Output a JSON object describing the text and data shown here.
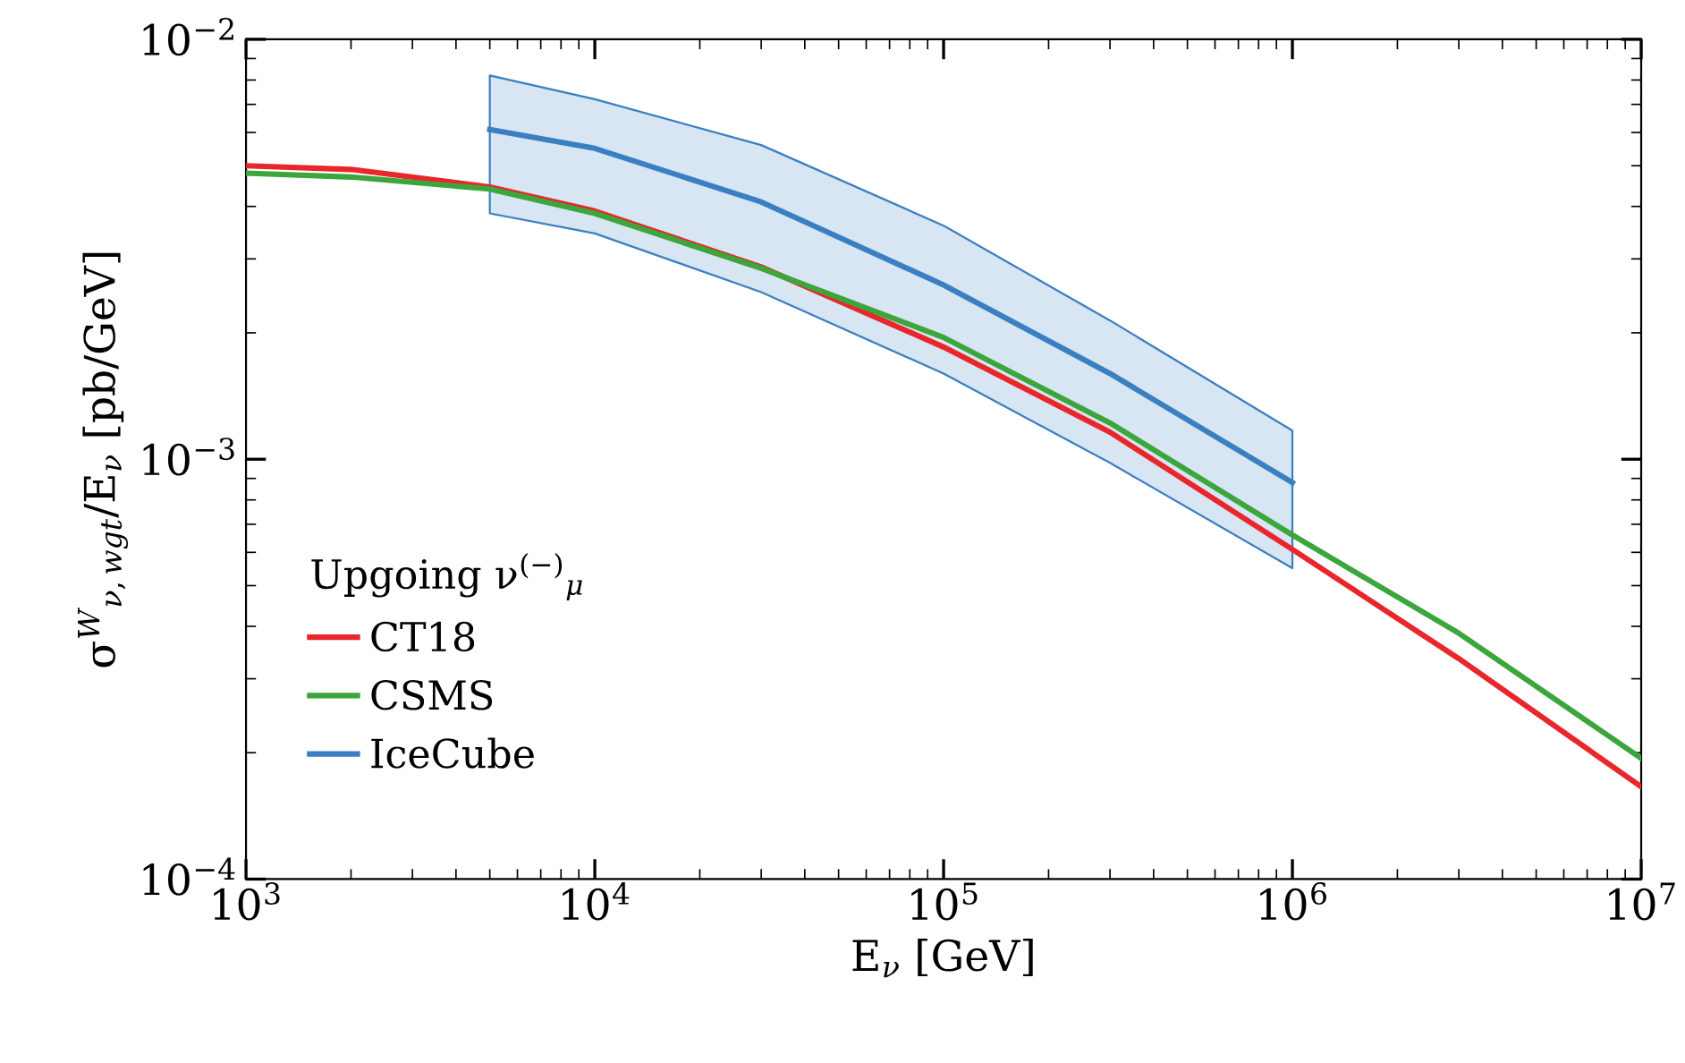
{
  "chart_data": {
    "type": "line",
    "xlabel": "E$_{ν}$ [GeV]",
    "ylabel": "σ$^{W}$$_{ν,wgt}$/E$_{ν}$ [pb/GeV]",
    "legend_title": "Upgoing ν$^{(−)}$$_{μ}$",
    "log": "xy",
    "grid": false,
    "legend": "lower left",
    "line_style": "solid",
    "marker": "none",
    "xlim": [
      1000,
      10000000
    ],
    "ylim": [
      0.0001,
      0.01
    ],
    "xticks": [
      {
        "value": 1000,
        "label": "10$^{3}$"
      },
      {
        "value": 10000,
        "label": "10$^{4}$"
      },
      {
        "value": 100000,
        "label": "10$^{5}$"
      },
      {
        "value": 1000000,
        "label": "10$^{6}$"
      },
      {
        "value": 10000000,
        "label": "10$^{7}$"
      }
    ],
    "yticks": [
      {
        "value": 0.0001,
        "label": "10$^{−4}$"
      },
      {
        "value": 0.001,
        "label": "10$^{−3}$"
      },
      {
        "value": 0.01,
        "label": "10$^{−2}$"
      }
    ],
    "series": [
      {
        "name": "CT18",
        "color": "#e8262b",
        "x": [
          1000,
          2000,
          5000,
          10000,
          30000,
          100000,
          300000,
          1000000,
          3000000,
          10000000
        ],
        "values": [
          0.005,
          0.0049,
          0.00445,
          0.0039,
          0.00287,
          0.00185,
          0.00116,
          0.00061,
          0.000335,
          0.000166
        ]
      },
      {
        "name": "CSMS",
        "color": "#3ca63c",
        "x": [
          1000,
          2000,
          5000,
          10000,
          30000,
          100000,
          300000,
          1000000,
          3000000,
          10000000
        ],
        "values": [
          0.0048,
          0.0047,
          0.0044,
          0.00385,
          0.00285,
          0.00195,
          0.00122,
          0.00066,
          0.000385,
          0.000194
        ]
      },
      {
        "name": "IceCube",
        "color": "#3a7fc1",
        "x": [
          5000,
          10000,
          30000,
          100000,
          300000,
          1000000
        ],
        "values": [
          0.0061,
          0.0055,
          0.0041,
          0.0026,
          0.0016,
          0.00088
        ],
        "lower": [
          0.00385,
          0.00345,
          0.0025,
          0.0016,
          0.00098,
          0.00055
        ],
        "upper": [
          0.0082,
          0.0072,
          0.0056,
          0.0036,
          0.00214,
          0.00117
        ]
      }
    ]
  }
}
